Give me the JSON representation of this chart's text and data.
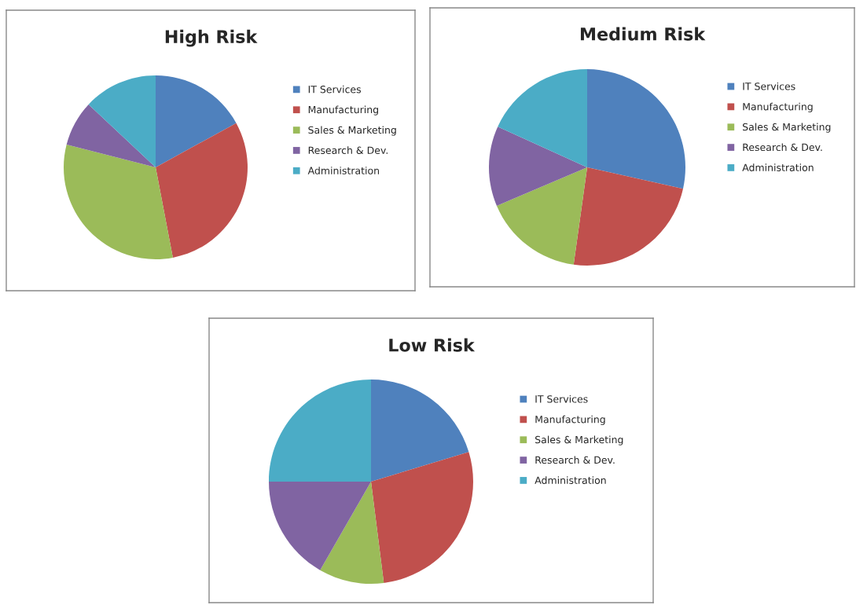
{
  "chart_data": [
    {
      "type": "pie",
      "title": "High Risk",
      "categories": [
        "IT Services",
        "Manufacturing",
        "Sales & Marketing",
        "Research & Dev.",
        "Administration"
      ],
      "values": [
        17,
        30,
        32,
        8,
        13
      ],
      "colors": [
        "#4f81bd",
        "#c0504d",
        "#9bbb59",
        "#8064a2",
        "#4bacc6"
      ],
      "legend": "right"
    },
    {
      "type": "pie",
      "title": "Medium Risk",
      "categories": [
        "IT Services",
        "Manufacturing",
        "Sales & Marketing",
        "Research & Dev.",
        "Administration"
      ],
      "values": [
        28.5,
        23.7,
        16.4,
        13.2,
        18.2
      ],
      "colors": [
        "#4f81bd",
        "#c0504d",
        "#9bbb59",
        "#8064a2",
        "#4bacc6"
      ],
      "legend": "right"
    },
    {
      "type": "pie",
      "title": "Low Risk",
      "categories": [
        "IT Services",
        "Manufacturing",
        "Sales & Marketing",
        "Research & Dev.",
        "Administration"
      ],
      "values": [
        20.3,
        27.7,
        10.3,
        16.7,
        25
      ],
      "colors": [
        "#4f81bd",
        "#c0504d",
        "#9bbb59",
        "#8064a2",
        "#4bacc6"
      ],
      "legend": "right"
    }
  ]
}
